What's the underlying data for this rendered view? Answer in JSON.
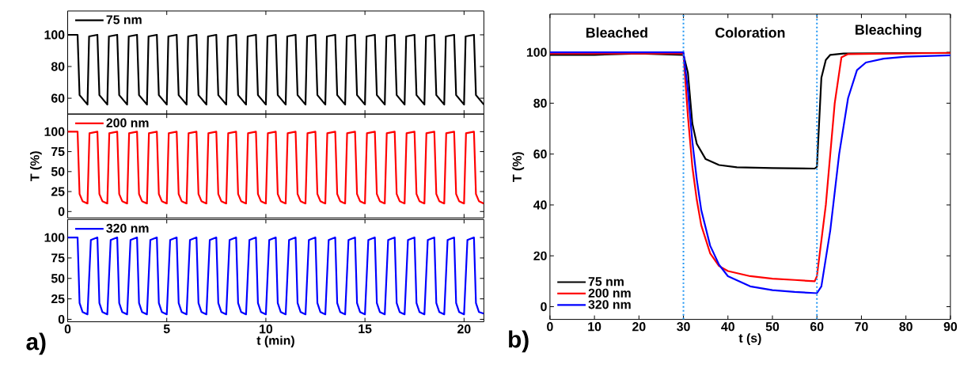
{
  "chart_data": [
    {
      "type": "line",
      "xlim": [
        0,
        21
      ],
      "ylim": [
        50,
        115
      ],
      "xticks": [
        0,
        5,
        10,
        15,
        20
      ],
      "yticks": [
        60,
        80,
        100
      ],
      "tick_labels": "y",
      "legend": "top left",
      "x": [
        0,
        0.5,
        0.6,
        1,
        1.08,
        1.5,
        1.6,
        2,
        2.08,
        2.5,
        2.6,
        3,
        3.08,
        3.5,
        3.6,
        4,
        4.08,
        4.5,
        4.6,
        5,
        5.08,
        5.5,
        5.6,
        6,
        6.08,
        6.5,
        6.6,
        7,
        7.08,
        7.5,
        7.6,
        8,
        8.08,
        8.5,
        8.6,
        9,
        9.08,
        9.5,
        9.6,
        10,
        10.08,
        10.5,
        10.6,
        11,
        11.08,
        11.5,
        11.6,
        12,
        12.08,
        12.5,
        12.6,
        13,
        13.08,
        13.5,
        13.6,
        14,
        14.08,
        14.5,
        14.6,
        15,
        15.08,
        15.5,
        15.6,
        16,
        16.08,
        16.5,
        16.6,
        17,
        17.08,
        17.5,
        17.6,
        18,
        18.08,
        18.5,
        18.6,
        19,
        19.08,
        19.5,
        19.6,
        20,
        20.08,
        20.5,
        20.6,
        21
      ],
      "series": [
        {
          "name": "75 nm",
          "color": "#000000",
          "values": [
            100,
            100,
            62,
            56,
            99,
            100,
            62,
            56,
            99,
            100,
            62,
            56,
            99,
            100,
            62,
            56,
            99,
            100,
            62,
            56,
            99,
            100,
            62,
            56,
            99,
            100,
            62,
            56,
            99,
            100,
            62,
            56,
            99,
            100,
            62,
            56,
            99,
            100,
            62,
            56,
            99,
            100,
            62,
            56,
            99,
            100,
            62,
            56,
            99,
            100,
            62,
            56,
            99,
            100,
            62,
            56,
            99,
            100,
            62,
            56,
            99,
            100,
            62,
            56,
            99,
            100,
            62,
            56,
            99,
            100,
            62,
            56,
            99,
            100,
            62,
            56,
            99,
            100,
            62,
            56,
            99,
            100,
            62,
            56
          ]
        }
      ]
    },
    {
      "type": "line",
      "xlim": [
        0,
        21
      ],
      "ylim": [
        -8,
        122
      ],
      "xticks": [
        0,
        5,
        10,
        15,
        20
      ],
      "yticks": [
        0,
        25,
        50,
        75,
        100
      ],
      "tick_labels": "y",
      "legend": "top left",
      "ylabel": "T (%)",
      "x": [
        0,
        0.5,
        0.6,
        0.75,
        1,
        1.1,
        1.5,
        1.6,
        1.75,
        2,
        2.1,
        2.5,
        2.6,
        2.75,
        3,
        3.1,
        3.5,
        3.6,
        3.75,
        4,
        4.1,
        4.5,
        4.6,
        4.75,
        5,
        5.1,
        5.5,
        5.6,
        5.75,
        6,
        6.1,
        6.5,
        6.6,
        6.75,
        7,
        7.1,
        7.5,
        7.6,
        7.75,
        8,
        8.1,
        8.5,
        8.6,
        8.75,
        9,
        9.1,
        9.5,
        9.6,
        9.75,
        10,
        10.1,
        10.5,
        10.6,
        10.75,
        11,
        11.1,
        11.5,
        11.6,
        11.75,
        12,
        12.1,
        12.5,
        12.6,
        12.75,
        13,
        13.1,
        13.5,
        13.6,
        13.75,
        14,
        14.1,
        14.5,
        14.6,
        14.75,
        15,
        15.1,
        15.5,
        15.6,
        15.75,
        16,
        16.1,
        16.5,
        16.6,
        16.75,
        17,
        17.1,
        17.5,
        17.6,
        17.75,
        18,
        18.1,
        18.5,
        18.6,
        18.75,
        19,
        19.1,
        19.5,
        19.6,
        19.75,
        20,
        20.1,
        20.5,
        20.6,
        20.75,
        21
      ],
      "series": [
        {
          "name": "200 nm",
          "color": "#ff0000",
          "values": [
            100,
            100,
            22,
            13,
            10,
            98,
            100,
            22,
            13,
            10,
            98,
            100,
            22,
            13,
            10,
            98,
            100,
            22,
            13,
            10,
            98,
            100,
            22,
            13,
            10,
            98,
            100,
            22,
            13,
            10,
            98,
            100,
            22,
            13,
            10,
            98,
            100,
            22,
            13,
            10,
            98,
            100,
            22,
            13,
            10,
            98,
            100,
            22,
            13,
            10,
            98,
            100,
            22,
            13,
            10,
            98,
            100,
            22,
            13,
            10,
            98,
            100,
            22,
            13,
            10,
            98,
            100,
            22,
            13,
            10,
            98,
            100,
            22,
            13,
            10,
            98,
            100,
            22,
            13,
            10,
            98,
            100,
            22,
            13,
            10,
            98,
            100,
            22,
            13,
            10,
            98,
            100,
            22,
            13,
            10,
            98,
            100,
            22,
            13,
            10,
            98,
            100,
            22,
            13,
            10
          ]
        }
      ]
    },
    {
      "type": "line",
      "xlim": [
        0,
        21
      ],
      "ylim": [
        -3,
        122
      ],
      "xticks": [
        0,
        5,
        10,
        15,
        20
      ],
      "yticks": [
        0,
        25,
        50,
        75,
        100
      ],
      "legend": "top left",
      "xlabel": "t (min)",
      "annotations": [
        "a)"
      ],
      "x": [
        0,
        0.5,
        0.6,
        0.75,
        1,
        1.17,
        1.5,
        1.6,
        1.75,
        2,
        2.17,
        2.5,
        2.6,
        2.75,
        3,
        3.17,
        3.5,
        3.6,
        3.75,
        4,
        4.17,
        4.5,
        4.6,
        4.75,
        5,
        5.17,
        5.5,
        5.6,
        5.75,
        6,
        6.17,
        6.5,
        6.6,
        6.75,
        7,
        7.17,
        7.5,
        7.6,
        7.75,
        8,
        8.17,
        8.5,
        8.6,
        8.75,
        9,
        9.17,
        9.5,
        9.6,
        9.75,
        10,
        10.17,
        10.5,
        10.6,
        10.75,
        11,
        11.17,
        11.5,
        11.6,
        11.75,
        12,
        12.17,
        12.5,
        12.6,
        12.75,
        13,
        13.17,
        13.5,
        13.6,
        13.75,
        14,
        14.17,
        14.5,
        14.6,
        14.75,
        15,
        15.17,
        15.5,
        15.6,
        15.75,
        16,
        16.17,
        16.5,
        16.6,
        16.75,
        17,
        17.17,
        17.5,
        17.6,
        17.75,
        18,
        18.17,
        18.5,
        18.6,
        18.75,
        19,
        19.17,
        19.5,
        19.6,
        19.75,
        20,
        20.17,
        20.5,
        20.6,
        20.75,
        21
      ],
      "series": [
        {
          "name": "320 nm",
          "color": "#0000ff",
          "values": [
            100,
            100,
            20,
            9,
            6,
            97,
            100,
            20,
            9,
            6,
            97,
            100,
            20,
            9,
            6,
            97,
            100,
            20,
            9,
            6,
            97,
            100,
            20,
            9,
            6,
            97,
            100,
            20,
            9,
            6,
            97,
            100,
            20,
            9,
            6,
            97,
            100,
            20,
            9,
            6,
            97,
            100,
            20,
            9,
            6,
            97,
            100,
            20,
            9,
            6,
            97,
            100,
            20,
            9,
            6,
            97,
            100,
            20,
            9,
            6,
            97,
            100,
            20,
            9,
            6,
            97,
            100,
            20,
            9,
            6,
            97,
            100,
            20,
            9,
            6,
            97,
            100,
            20,
            9,
            6,
            97,
            100,
            20,
            9,
            6,
            97,
            100,
            20,
            9,
            6,
            97,
            100,
            20,
            9,
            6,
            97,
            100,
            20,
            9,
            6,
            97,
            100,
            20,
            9,
            7
          ]
        }
      ]
    },
    {
      "type": "line",
      "xlim": [
        0,
        90
      ],
      "ylim": [
        -5,
        115
      ],
      "xticks": [
        0,
        10,
        20,
        30,
        40,
        50,
        60,
        70,
        80,
        90
      ],
      "yticks": [
        0,
        20,
        40,
        60,
        80,
        100
      ],
      "legend": "bottom left",
      "xlabel": "t (s)",
      "ylabel": "T (%)",
      "ref_lines": [
        {
          "axis": "x",
          "value": 30,
          "color": "#2196f3",
          "line_style": "dotted"
        },
        {
          "axis": "x",
          "value": 60,
          "color": "#2196f3",
          "line_style": "dotted"
        }
      ],
      "annotations": [
        "Bleached",
        "Coloration",
        "Bleaching",
        "b)"
      ],
      "series": [
        {
          "name": "75 nm",
          "color": "#000000",
          "x": [
            0,
            10,
            20,
            30,
            31,
            32,
            33,
            35,
            38,
            42,
            50,
            59.5,
            60,
            61,
            62,
            63,
            66,
            90
          ],
          "values": [
            99,
            99,
            99.5,
            99,
            92,
            72,
            64,
            58,
            55.7,
            54.8,
            54.5,
            54.3,
            55,
            90,
            97,
            99,
            99.5,
            99.8
          ]
        },
        {
          "name": "200 nm",
          "color": "#ff0000",
          "x": [
            0,
            30,
            31,
            32,
            33,
            34,
            36,
            38,
            40,
            45,
            50,
            55,
            59.5,
            60,
            62,
            64,
            65.5,
            67,
            90
          ],
          "values": [
            99.5,
            99.5,
            75,
            55,
            42,
            32,
            21,
            16,
            14,
            12,
            11,
            10.5,
            10,
            12,
            40,
            80,
            98,
            99.3,
            99.8
          ]
        },
        {
          "name": "320 nm",
          "color": "#0000ff",
          "x": [
            0,
            30,
            31,
            32,
            33,
            34,
            36,
            38,
            40,
            45,
            50,
            55,
            60,
            61,
            63,
            65,
            67,
            69,
            71,
            75,
            80,
            90
          ],
          "values": [
            100,
            100,
            85,
            65,
            50,
            38,
            24,
            16.5,
            12,
            8,
            6.5,
            5.8,
            5.3,
            8,
            30,
            60,
            82,
            93,
            96,
            97.5,
            98.3,
            98.8
          ]
        }
      ]
    }
  ]
}
